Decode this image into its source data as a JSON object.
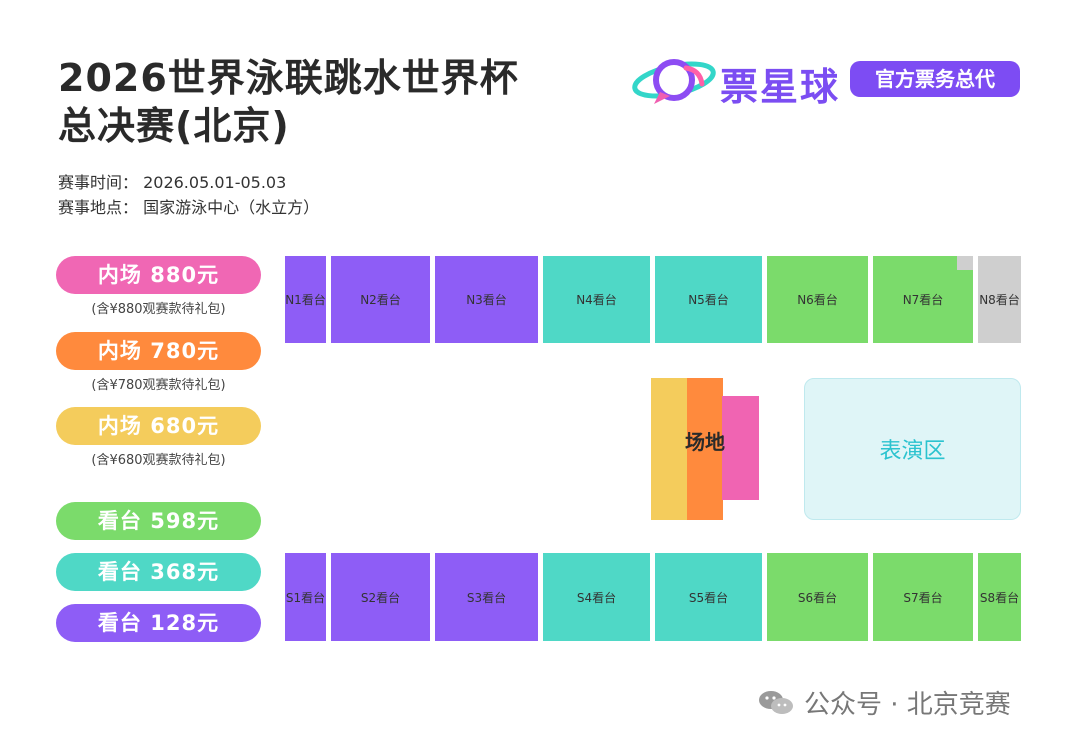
{
  "title": {
    "line1": "2026世界泳联跳水世界杯",
    "line2": "总决赛(北京)"
  },
  "info": {
    "time": "赛事时间：  2026.05.01-05.03",
    "venue": "赛事地点：  国家游泳中心（水立方）"
  },
  "logo": {
    "brand": "票星球",
    "badge": "官方票务总代",
    "icon": "planet-chat-logo-icon"
  },
  "colors": {
    "purple": "#8e5df6",
    "teal": "#4fd8c6",
    "green": "#7bdb6b",
    "gray": "#cfcfcf",
    "pink": "#f067b4",
    "orange": "#ff8a3d",
    "yellow": "#f4cc5c",
    "brand": "#7b4df2"
  },
  "legend": [
    {
      "label": "内场 880元",
      "note": "(含¥880观赛款待礼包)",
      "color": "#f067b4"
    },
    {
      "label": "内场 780元",
      "note": "(含¥780观赛款待礼包)",
      "color": "#ff8a3d"
    },
    {
      "label": "内场 680元",
      "note": "(含¥680观赛款待礼包)",
      "color": "#f4cc5c"
    },
    {
      "label": "看台 598元",
      "note": "",
      "color": "#7bdb6b"
    },
    {
      "label": "看台 368元",
      "note": "",
      "color": "#4fd8c6"
    },
    {
      "label": "看台 128元",
      "note": "",
      "color": "#8e5df6"
    }
  ],
  "north": [
    "N1看台",
    "N2看台",
    "N3看台",
    "N4看台",
    "N5看台",
    "N6看台",
    "N7看台",
    "N8看台"
  ],
  "south": [
    "S1看台",
    "S2看台",
    "S3看台",
    "S4看台",
    "S5看台",
    "S6看台",
    "S7看台",
    "S8看台"
  ],
  "stage_label": "场地",
  "performance_label": "表演区",
  "watermark": {
    "text": "公众号 · 北京竞赛",
    "icon": "wechat-icon"
  }
}
